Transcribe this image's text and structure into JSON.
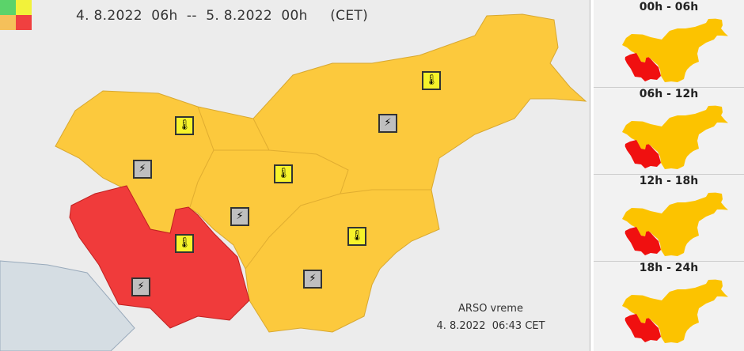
{
  "header": {
    "period": "4. 8.2022  06h  --  5. 8.2022  00h     (CET)"
  },
  "legend": {
    "colors": [
      "#5bd36a",
      "#f2f23a",
      "#f5c05a",
      "#f04040"
    ]
  },
  "footer": {
    "source": "ARSO vreme",
    "issued": "4. 8.2022  06:43 CET"
  },
  "colors": {
    "orange": "#fcc93d",
    "red": "#f03b3b",
    "background": "#ececec"
  },
  "warnings": [
    {
      "region": "north-west",
      "icons": [
        "heat-icon",
        "thunderstorm-icon"
      ],
      "level": "orange"
    },
    {
      "region": "north-east",
      "icons": [
        "heat-icon",
        "thunderstorm-icon"
      ],
      "level": "orange"
    },
    {
      "region": "central",
      "icons": [
        "heat-icon",
        "thunderstorm-icon"
      ],
      "level": "orange"
    },
    {
      "region": "south-east",
      "icons": [
        "heat-icon",
        "thunderstorm-icon"
      ],
      "level": "orange"
    },
    {
      "region": "south-west",
      "icons": [
        "heat-icon",
        "thunderstorm-icon"
      ],
      "level": "red"
    }
  ],
  "panels": [
    {
      "label": "00h - 06h"
    },
    {
      "label": "06h - 12h"
    },
    {
      "label": "12h - 18h"
    },
    {
      "label": "18h - 24h"
    }
  ]
}
